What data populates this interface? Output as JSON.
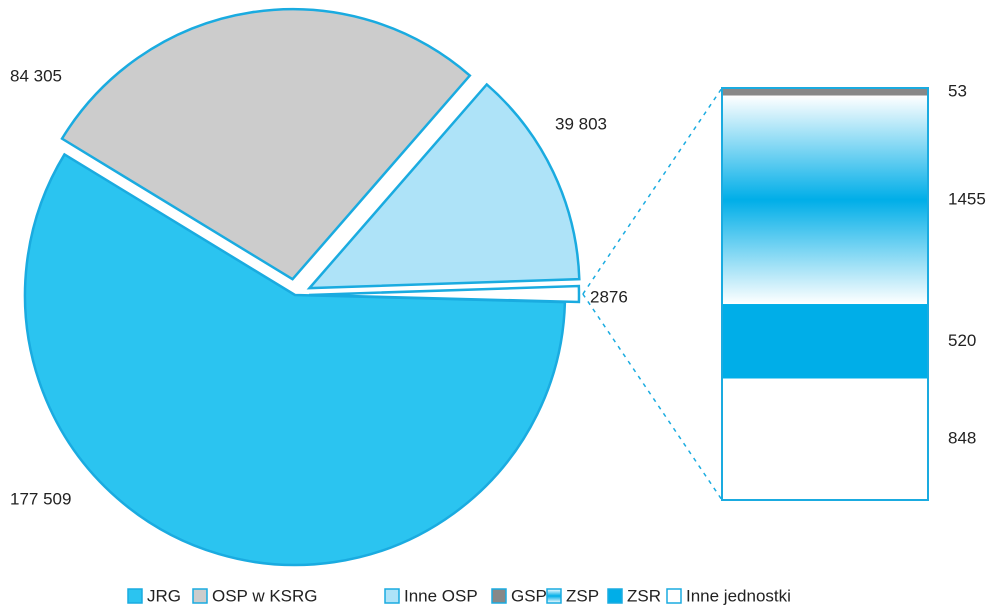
{
  "chart_data": {
    "type": "pie-of-bar",
    "pie": {
      "categories": [
        "JRG",
        "OSP w KSRG",
        "Inne OSP",
        null
      ],
      "values": [
        177509,
        84305,
        39803,
        2876
      ],
      "value_labels": [
        "177 509",
        "84 305",
        "39 803",
        "2876"
      ],
      "colors": [
        "#2bc4f0",
        "#cccccc",
        "#aee3f8",
        "#ffffff"
      ]
    },
    "bar": {
      "categories": [
        "GSP",
        "ZSP",
        "ZSR",
        "Inne jednostki"
      ],
      "values": [
        53,
        1455,
        520,
        848
      ],
      "colors": [
        "#888888",
        "gradient",
        "#00aee8",
        "#ffffff"
      ]
    },
    "outline": "#1aabe0"
  }
}
